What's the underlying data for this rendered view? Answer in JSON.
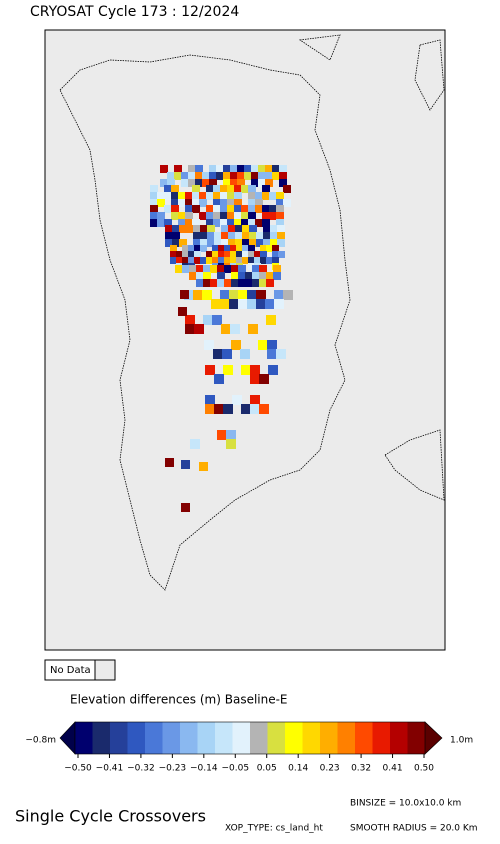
{
  "title": "CRYOSAT Cycle 173 : 12/2024",
  "legend": {
    "no_data": "No Data"
  },
  "colorbar": {
    "title": "Elevation differences (m) Baseline-E",
    "min_label": "−0.8m",
    "max_label": "1.0m",
    "ticks": [
      "−0.50",
      "−0.41",
      "−0.32",
      "−0.23",
      "−0.14",
      "−0.05",
      "0.05",
      "0.14",
      "0.23",
      "0.32",
      "0.41",
      "0.50"
    ],
    "low_color": "#00004a",
    "high_color": "#5a0000",
    "colors": [
      "#00006e",
      "#1a2a6c",
      "#25409a",
      "#2f58c0",
      "#4a78d8",
      "#6a98e6",
      "#8ab8f0",
      "#a8d4f6",
      "#c6e6fa",
      "#e2f2fc",
      "#b4b4b4",
      "#d8e040",
      "#ffff00",
      "#ffd800",
      "#ffae00",
      "#ff8000",
      "#ff4a00",
      "#e81a00",
      "#b40000",
      "#820000"
    ]
  },
  "footer": {
    "name": "Single Cycle Crossovers",
    "binsize": "BINSIZE = 10.0x10.0 km",
    "xop_type": "XOP_TYPE: cs_land_ht",
    "smooth_radius": "SMOOTH RADIUS =  20.0 Km"
  }
}
